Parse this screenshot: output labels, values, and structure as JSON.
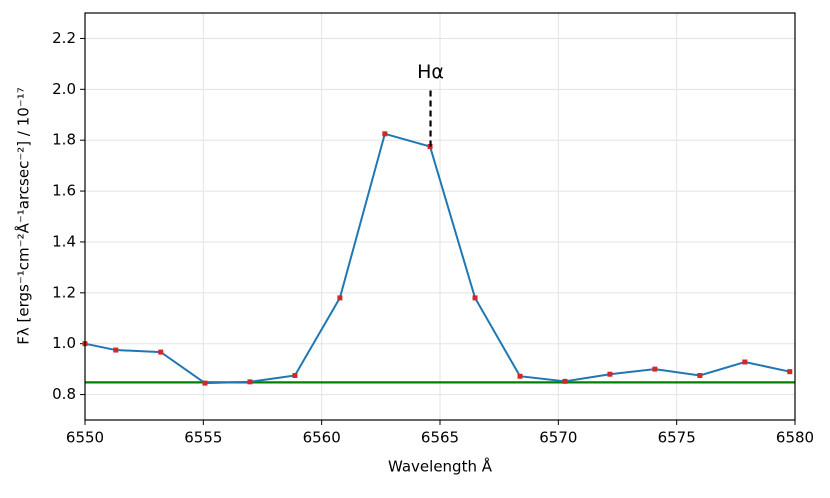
{
  "chart_data": {
    "type": "line",
    "xlabel": "Wavelength Å",
    "ylabel": "Fλ [ergs⁻¹cm⁻²Å⁻¹arcsec⁻²] / 10⁻¹⁷",
    "x": [
      6550,
      6551.3,
      6553.2,
      6555.07,
      6556.97,
      6558.87,
      6560.77,
      6562.67,
      6564.58,
      6566.48,
      6568.38,
      6570.28,
      6572.18,
      6574.08,
      6575.98,
      6577.88,
      6579.78
    ],
    "series": [
      {
        "color": "#1f77b4",
        "marker_color": "#d62728",
        "values": [
          1.0,
          0.975,
          0.967,
          0.845,
          0.85,
          0.875,
          1.18,
          1.825,
          1.775,
          1.18,
          0.872,
          0.852,
          0.88,
          0.9,
          0.875,
          0.928,
          0.89
        ]
      }
    ],
    "hline": {
      "value": 0.848,
      "color": "#008000"
    },
    "annotation": {
      "text": "Hα",
      "x": 6564.6,
      "y_start": 1.775,
      "y_end": 2.0
    },
    "xlim": [
      6550,
      6580
    ],
    "ylim": [
      0.7,
      2.3
    ],
    "xticks": [
      6550,
      6555,
      6560,
      6565,
      6570,
      6575,
      6580
    ],
    "yticks": [
      0.8,
      {
        "value": 1,
        "label": "1.0"
      },
      1.2,
      1.4,
      1.6,
      1.8,
      {
        "value": 2,
        "label": "2.0"
      },
      2.2
    ],
    "grid": true
  }
}
